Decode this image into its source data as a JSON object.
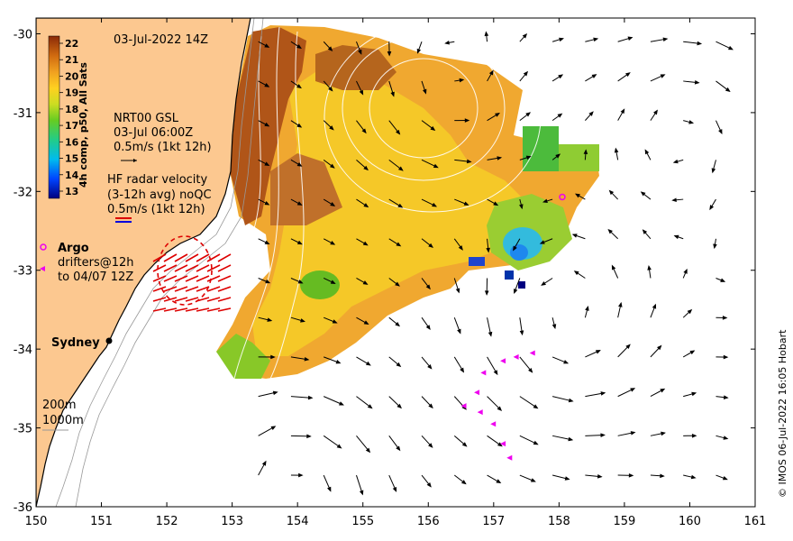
{
  "map": {
    "timestamp": "03-Jul-2022 14Z",
    "longitude_ticks": [
      150,
      151,
      152,
      153,
      154,
      155,
      156,
      157,
      158,
      159,
      160,
      161
    ],
    "latitude_ticks": [
      -30,
      -31,
      -32,
      -33,
      -34,
      -35,
      -36
    ],
    "lon_range": [
      150,
      161
    ],
    "lat_range": [
      -36,
      -29.8
    ],
    "colorbar": {
      "title": "4h comp, p50, All Sats",
      "min": 13,
      "max": 22,
      "ticks": [
        22,
        21,
        20,
        19,
        18,
        17,
        16,
        15,
        14,
        13
      ]
    },
    "legend": {
      "gsl_line1": "NRT00 GSL",
      "gsl_line2": "03-Jul 06:00Z",
      "gsl_line3": "0.5m/s (1kt 12h)",
      "radar_line1": "HF radar velocity",
      "radar_line2": "(3-12h avg) noQC",
      "radar_line3": "0.5m/s (1kt 12h)",
      "argo": "Argo",
      "drifters_line1": "drifters@12h",
      "drifters_line2": "to 04/07 12Z",
      "city": "Sydney",
      "bathy_1": "200m",
      "bathy_2": "1000m"
    },
    "credit": "© IMOS 06-Jul-2022 16:05 Hobart",
    "colors": {
      "land": "#fcc890",
      "arrow": "#000000",
      "radar_arrow": "#dd0000",
      "drifter": "#ee00ee",
      "argo": "#ee00ee"
    },
    "argo_floats": [
      {
        "lon": 158.05,
        "lat": -32.07
      }
    ],
    "drifter_track": [
      [
        157.55,
        -34.05
      ],
      [
        157.3,
        -34.1
      ],
      [
        157.1,
        -34.15
      ],
      [
        156.8,
        -34.3
      ],
      [
        156.7,
        -34.55
      ],
      [
        156.5,
        -34.72
      ],
      [
        156.75,
        -34.8
      ],
      [
        156.95,
        -34.95
      ],
      [
        157.1,
        -35.2
      ],
      [
        157.2,
        -35.38
      ]
    ]
  }
}
